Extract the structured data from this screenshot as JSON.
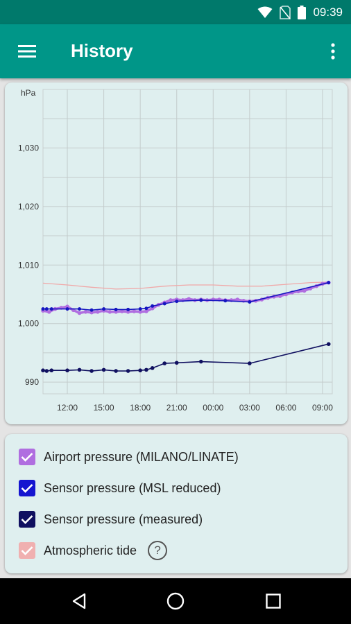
{
  "status_bar": {
    "time": "09:39"
  },
  "app_bar": {
    "title": "History"
  },
  "colors": {
    "primary": "#009688",
    "primary_dark": "#00796b",
    "airport": "#b06ee0",
    "sensor_msl": "#1515c0",
    "sensor_measured": "#101060",
    "tide": "#f0a8a8"
  },
  "chart_data": {
    "type": "line",
    "ylabel": "hPa",
    "ylim": [
      988,
      1040
    ],
    "yticks": [
      "1,030",
      "1,020",
      "1,010",
      "1,000",
      "990"
    ],
    "ytick_values": [
      1030,
      1020,
      1010,
      1000,
      990
    ],
    "xlim": [
      10,
      33.8
    ],
    "xticks": [
      "12:00",
      "15:00",
      "18:00",
      "21:00",
      "00:00",
      "03:00",
      "06:00",
      "09:00"
    ],
    "xtick_values": [
      12,
      15,
      18,
      21,
      24,
      27,
      30,
      33
    ],
    "grid": true,
    "series": [
      {
        "name": "Atmospheric tide",
        "x": [
          10,
          12,
          14,
          16,
          18,
          20,
          22,
          24,
          26,
          28,
          30,
          32,
          33.5
        ],
        "y": [
          1006.9,
          1006.6,
          1006.2,
          1005.9,
          1006.0,
          1006.4,
          1006.6,
          1006.6,
          1006.4,
          1006.4,
          1006.7,
          1007.0,
          1007.1
        ]
      },
      {
        "name": "Airport pressure (MILANO/LINATE)",
        "x": [
          10,
          10.5,
          11,
          11.5,
          12,
          12.5,
          13,
          13.5,
          14,
          14.5,
          15,
          15.5,
          16,
          16.5,
          17,
          17.5,
          18,
          18.5,
          19,
          19.5,
          20,
          20.5,
          21,
          21.5,
          22,
          22.5,
          23,
          23.5,
          24,
          24.5,
          25,
          25.5,
          26,
          26.5,
          27,
          27.5,
          28,
          28.5,
          29,
          29.5,
          30,
          30.5,
          31,
          31.5,
          32,
          32.5,
          33,
          33.5
        ],
        "y": [
          1002.2,
          1002.0,
          1002.5,
          1002.7,
          1002.9,
          1002.3,
          1001.8,
          1002.0,
          1001.9,
          1002.0,
          1002.2,
          1002.0,
          1002.0,
          1002.1,
          1002.0,
          1002.1,
          1002.0,
          1002.1,
          1002.6,
          1003.2,
          1003.6,
          1004.0,
          1004.1,
          1004.0,
          1004.2,
          1004.0,
          1004.1,
          1004.0,
          1004.1,
          1004.1,
          1004.0,
          1004.0,
          1004.1,
          1003.9,
          1003.8,
          1003.9,
          1004.1,
          1004.4,
          1004.6,
          1004.7,
          1005.0,
          1005.3,
          1005.5,
          1005.6,
          1006.0,
          1006.4,
          1006.8,
          1007.0
        ]
      },
      {
        "name": "Sensor pressure (MSL reduced)",
        "x": [
          10,
          10.3,
          10.7,
          12,
          13,
          14,
          15,
          16,
          17,
          18,
          18.5,
          19,
          20,
          21,
          23,
          25,
          27,
          33.5
        ],
        "y": [
          1002.5,
          1002.5,
          1002.5,
          1002.5,
          1002.5,
          1002.3,
          1002.5,
          1002.4,
          1002.4,
          1002.5,
          1002.6,
          1003.0,
          1003.4,
          1003.8,
          1004.0,
          1003.9,
          1003.7,
          1007.0
        ]
      },
      {
        "name": "Sensor pressure (measured)",
        "x": [
          10,
          10.3,
          10.7,
          12,
          13,
          14,
          15,
          16,
          17,
          18,
          18.5,
          19,
          20,
          21,
          23,
          27,
          33.5
        ],
        "y": [
          992.0,
          991.9,
          992.0,
          992.0,
          992.1,
          991.9,
          992.1,
          991.9,
          991.9,
          992.0,
          992.1,
          992.4,
          993.2,
          993.3,
          993.5,
          993.2,
          996.5
        ]
      }
    ]
  },
  "legend": {
    "items": [
      {
        "label": "Airport pressure (MILANO/LINATE)",
        "color": "#b06ee0",
        "checked": true
      },
      {
        "label": "Sensor pressure (MSL reduced)",
        "color": "#1515d0",
        "checked": true
      },
      {
        "label": "Sensor pressure (measured)",
        "color": "#101060",
        "checked": true
      },
      {
        "label": "Atmospheric tide",
        "color": "#f0b0b0",
        "checked": true
      }
    ],
    "help_glyph": "?"
  },
  "icons": {
    "menu": "menu-icon",
    "more": "more-vert-icon",
    "wifi": "wifi-icon",
    "no_sim": "no-sim-icon",
    "battery": "battery-icon",
    "back": "back-icon",
    "home": "home-icon",
    "recents": "recents-icon"
  }
}
